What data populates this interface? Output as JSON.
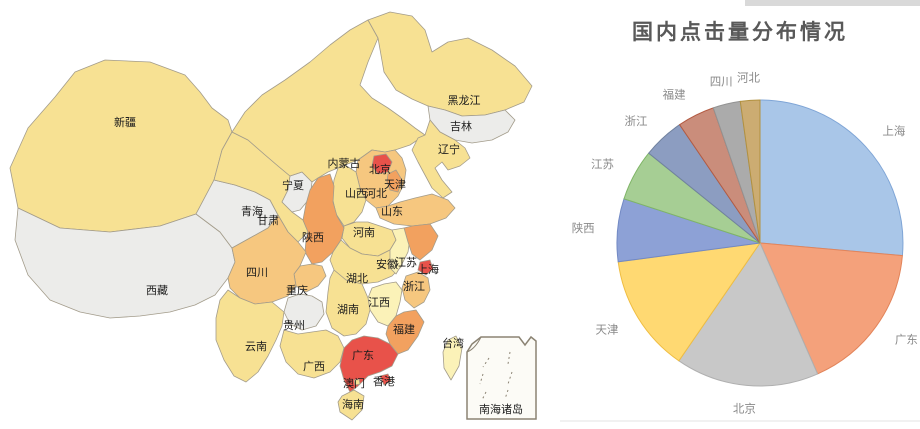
{
  "chart_data": [
    {
      "type": "pie",
      "title": "国内点击量分布情况",
      "categories": [
        "上海",
        "广东",
        "北京",
        "天津",
        "陕西",
        "江苏",
        "浙江",
        "福建",
        "四川",
        "河北"
      ],
      "values": [
        26.4,
        17.0,
        16.2,
        13.3,
        7.1,
        5.8,
        4.7,
        4.2,
        3.1,
        2.2
      ],
      "value_unit": "percent-estimated-from-slice-angles",
      "colors": [
        "#A9C6E8",
        "#F4A17B",
        "#C8C8C8",
        "#FFD972",
        "#8DA1D6",
        "#A6CE94",
        "#8C9DC1",
        "#CA8D7B",
        "#ABABAB",
        "#CCAC72"
      ],
      "border_colors": [
        "#7FA5D6",
        "#E2845A",
        "#AFAFAF",
        "#EFBD42",
        "#7289C4",
        "#7FB567",
        "#71829F",
        "#B35B43",
        "#939393",
        "#B2913F"
      ],
      "start_angle_deg": 0,
      "clockwise": true,
      "legend": "none",
      "labels": "outside",
      "label_color": "#8a8a8a",
      "center": [
        200,
        243
      ],
      "radius": 143,
      "label_radius": 166
    },
    {
      "type": "map-choropleth",
      "region": "China",
      "inset_label": "南海诸岛",
      "palette": {
        "none": "#ECECEA",
        "l1": "#FBF2B8",
        "l2": "#F7E193",
        "l3": "#F6C77F",
        "l4": "#F2A15F",
        "l5": "#E8524A"
      },
      "provinces": [
        {
          "name": "新疆",
          "key": "xinjiang",
          "level": "l2"
        },
        {
          "name": "西藏",
          "key": "xizang",
          "level": "none"
        },
        {
          "name": "青海",
          "key": "qinghai",
          "level": "none"
        },
        {
          "name": "甘肃",
          "key": "gansu",
          "level": "l2"
        },
        {
          "name": "宁夏",
          "key": "ningxia",
          "level": "none"
        },
        {
          "name": "内蒙古",
          "key": "neimenggu",
          "level": "l2"
        },
        {
          "name": "黑龙江",
          "key": "heilongjiang",
          "level": "l2"
        },
        {
          "name": "吉林",
          "key": "jilin",
          "level": "none"
        },
        {
          "name": "辽宁",
          "key": "liaoning",
          "level": "l2"
        },
        {
          "name": "河北",
          "key": "hebei",
          "level": "l3"
        },
        {
          "name": "北京",
          "key": "beijing",
          "level": "l5"
        },
        {
          "name": "天津",
          "key": "tianjin",
          "level": "l4"
        },
        {
          "name": "山西",
          "key": "shanxi",
          "level": "l2"
        },
        {
          "name": "山东",
          "key": "shandong",
          "level": "l3"
        },
        {
          "name": "河南",
          "key": "henan",
          "level": "l2"
        },
        {
          "name": "陕西",
          "key": "shaanxi",
          "level": "l4"
        },
        {
          "name": "湖北",
          "key": "hubei",
          "level": "l2"
        },
        {
          "name": "安徽",
          "key": "anhui",
          "level": "l1"
        },
        {
          "name": "江苏",
          "key": "jiangsu",
          "level": "l4"
        },
        {
          "name": "上海",
          "key": "shanghai",
          "level": "l5"
        },
        {
          "name": "浙江",
          "key": "zhejiang",
          "level": "l3"
        },
        {
          "name": "江西",
          "key": "jiangxi",
          "level": "l1"
        },
        {
          "name": "湖南",
          "key": "hunan",
          "level": "l2"
        },
        {
          "name": "重庆",
          "key": "chongqing",
          "level": "l3"
        },
        {
          "name": "四川",
          "key": "sichuan",
          "level": "l3"
        },
        {
          "name": "贵州",
          "key": "guizhou",
          "level": "none"
        },
        {
          "name": "云南",
          "key": "yunnan",
          "level": "l2"
        },
        {
          "name": "广西",
          "key": "guangxi",
          "level": "l2"
        },
        {
          "name": "广东",
          "key": "guangdong",
          "level": "l5"
        },
        {
          "name": "福建",
          "key": "fujian",
          "level": "l4"
        },
        {
          "name": "台湾",
          "key": "taiwan",
          "level": "l1"
        },
        {
          "name": "海南",
          "key": "hainan",
          "level": "l2"
        },
        {
          "name": "香港",
          "key": "xianggang",
          "level": "l5"
        },
        {
          "name": "澳门",
          "key": "aomen",
          "level": "l2"
        }
      ]
    }
  ]
}
